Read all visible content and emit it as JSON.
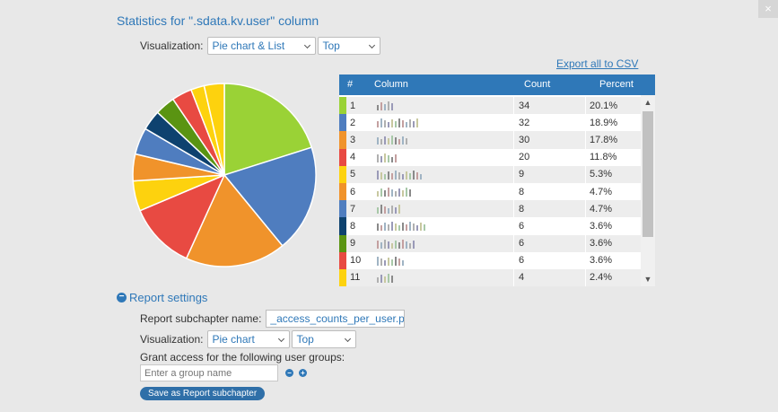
{
  "dialog": {
    "title": "Statistics for \".sdata.kv.user\" column",
    "close_label": "×"
  },
  "visualization": {
    "label": "Visualization:",
    "type_value": "Pie chart & List",
    "mode_value": "Top"
  },
  "export_label": "Export all to CSV",
  "table": {
    "headers": {
      "index": "#",
      "column": "Column",
      "count": "Count",
      "percent": "Percent"
    },
    "rows": [
      {
        "num": "1",
        "count": "34",
        "percent": "20.1%",
        "color": "#9ad236"
      },
      {
        "num": "2",
        "count": "32",
        "percent": "18.9%",
        "color": "#4f7dbf"
      },
      {
        "num": "3",
        "count": "30",
        "percent": "17.8%",
        "color": "#f0932b"
      },
      {
        "num": "4",
        "count": "20",
        "percent": "11.8%",
        "color": "#e84a42"
      },
      {
        "num": "5",
        "count": "9",
        "percent": "5.3%",
        "color": "#fdd20e"
      },
      {
        "num": "6",
        "count": "8",
        "percent": "4.7%",
        "color": "#f0932b"
      },
      {
        "num": "7",
        "count": "8",
        "percent": "4.7%",
        "color": "#4f7dbf"
      },
      {
        "num": "8",
        "count": "6",
        "percent": "3.6%",
        "color": "#0e426f"
      },
      {
        "num": "9",
        "count": "6",
        "percent": "3.6%",
        "color": "#5a9412"
      },
      {
        "num": "10",
        "count": "6",
        "percent": "3.6%",
        "color": "#e84a42"
      },
      {
        "num": "11",
        "count": "4",
        "percent": "2.4%",
        "color": "#fdd20e"
      }
    ]
  },
  "chart_data": {
    "type": "pie",
    "values": [
      34,
      32,
      30,
      20,
      9,
      8,
      8,
      6,
      6,
      6,
      4,
      6
    ],
    "colors": [
      "#9ad236",
      "#4f7dbf",
      "#f0932b",
      "#e84a42",
      "#fdd20e",
      "#f0932b",
      "#4f7dbf",
      "#0e426f",
      "#5a9412",
      "#e84a42",
      "#fdd20e",
      "#fdd20e"
    ]
  },
  "report": {
    "header": "Report settings",
    "subchapter_label": "Report subchapter name:",
    "subchapter_value": "_access_counts_per_user.pie",
    "viz_label": "Visualization:",
    "viz_type": "Pie chart",
    "viz_mode": "Top",
    "grant_label": "Grant access for the following user groups:",
    "group_placeholder": "Enter a group name",
    "save_label": "Save as Report subchapter"
  }
}
